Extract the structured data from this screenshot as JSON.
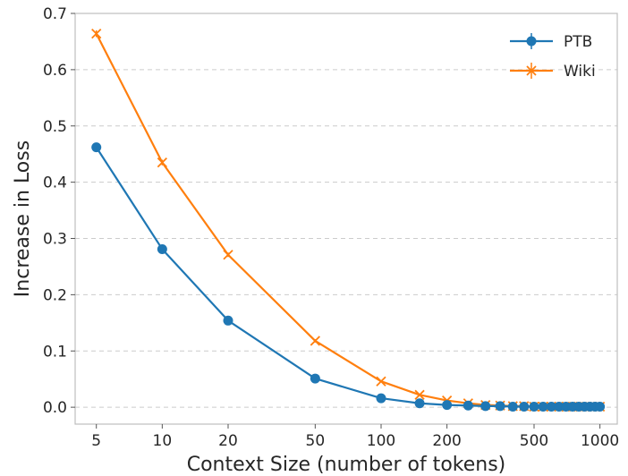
{
  "chart_data": {
    "type": "line",
    "xlabel": "Context Size (number of tokens)",
    "ylabel": "Increase in Loss",
    "x_scale": "log",
    "xlim": [
      4.0,
      1200
    ],
    "ylim": [
      -0.03,
      0.7
    ],
    "x_ticks": [
      5,
      10,
      20,
      50,
      100,
      200,
      500,
      1000
    ],
    "y_ticks": [
      0.0,
      0.1,
      0.2,
      0.3,
      0.4,
      0.5,
      0.6,
      0.7
    ],
    "grid": "horizontal-dashed",
    "legend_position": "top-right",
    "series": [
      {
        "name": "PTB",
        "color": "#1f77b4",
        "marker": "circle-with-errorbar",
        "x": [
          5,
          10,
          20,
          50,
          100,
          150,
          200,
          250,
          300,
          350,
          400,
          450,
          500,
          550,
          600,
          650,
          700,
          750,
          800,
          850,
          900,
          950,
          1000
        ],
        "y": [
          0.462,
          0.281,
          0.154,
          0.051,
          0.016,
          0.007,
          0.004,
          0.003,
          0.002,
          0.002,
          0.001,
          0.001,
          0.001,
          0.001,
          0.001,
          0.001,
          0.001,
          0.001,
          0.001,
          0.001,
          0.001,
          0.001,
          0.001
        ],
        "err": [
          0.008,
          0.007,
          0.005,
          0.003,
          0.002,
          0.001,
          0.001,
          0.001,
          0.001,
          0.001,
          0.001,
          0.001,
          0.001,
          0.001,
          0.001,
          0.001,
          0.001,
          0.001,
          0.001,
          0.001,
          0.001,
          0.001,
          0.001
        ]
      },
      {
        "name": "Wiki",
        "color": "#ff7f0e",
        "marker": "x-with-errorbar",
        "x": [
          5,
          10,
          20,
          50,
          100,
          150,
          200,
          250,
          300,
          350,
          400,
          450,
          500,
          550,
          600,
          650,
          700,
          750,
          800,
          850,
          900,
          950,
          1000
        ],
        "y": [
          0.664,
          0.435,
          0.271,
          0.118,
          0.046,
          0.022,
          0.012,
          0.007,
          0.004,
          0.003,
          0.002,
          0.002,
          0.001,
          0.001,
          0.001,
          0.001,
          0.001,
          0.001,
          0.001,
          0.001,
          0.001,
          0.001,
          0.001
        ],
        "err": [
          0.006,
          0.005,
          0.004,
          0.003,
          0.002,
          0.001,
          0.001,
          0.001,
          0.001,
          0.001,
          0.001,
          0.001,
          0.001,
          0.001,
          0.001,
          0.001,
          0.001,
          0.001,
          0.001,
          0.001,
          0.001,
          0.001,
          0.001
        ]
      }
    ]
  }
}
